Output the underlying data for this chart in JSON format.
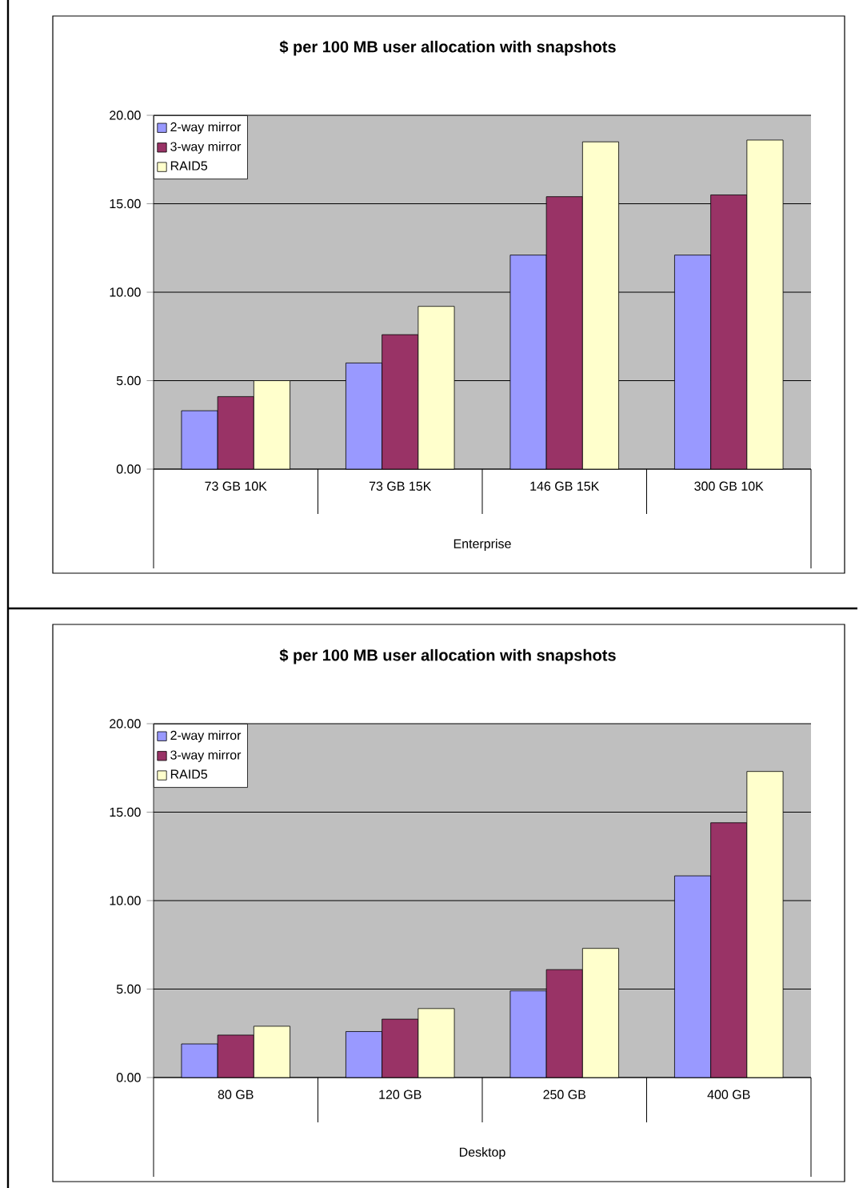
{
  "chart_data": [
    {
      "type": "bar",
      "title": "$ per 100 MB user allocation with snapshots",
      "xlabel": "Enterprise",
      "categories": [
        "73 GB 10K",
        "73 GB 15K",
        "146 GB 15K",
        "300 GB 10K"
      ],
      "series": [
        {
          "name": "2-way mirror",
          "color": "#9999ff",
          "values": [
            3.3,
            6.0,
            12.1,
            12.1
          ]
        },
        {
          "name": "3-way mirror",
          "color": "#993366",
          "values": [
            4.1,
            7.6,
            15.4,
            15.5
          ]
        },
        {
          "name": "RAID5",
          "color": "#ffffcc",
          "values": [
            5.0,
            9.2,
            18.5,
            18.6
          ]
        }
      ],
      "ylim": [
        0,
        20
      ],
      "yticks": [
        {
          "value": 0,
          "label": "0.00"
        },
        {
          "value": 5,
          "label": "5.00"
        },
        {
          "value": 10,
          "label": "10.00"
        },
        {
          "value": 15,
          "label": "15.00"
        },
        {
          "value": 20,
          "label": "20.00"
        }
      ],
      "grid": "y",
      "legend": "top left"
    },
    {
      "type": "bar",
      "title": "$ per 100 MB user allocation with snapshots",
      "xlabel": "Desktop",
      "categories": [
        "80 GB",
        "120 GB",
        "250 GB",
        "400 GB"
      ],
      "series": [
        {
          "name": "2-way mirror",
          "color": "#9999ff",
          "values": [
            1.9,
            2.6,
            4.9,
            11.4
          ]
        },
        {
          "name": "3-way mirror",
          "color": "#993366",
          "values": [
            2.4,
            3.3,
            6.1,
            14.4
          ]
        },
        {
          "name": "RAID5",
          "color": "#ffffcc",
          "values": [
            2.9,
            3.9,
            7.3,
            17.3
          ]
        }
      ],
      "ylim": [
        0,
        20
      ],
      "yticks": [
        {
          "value": 0,
          "label": "0.00"
        },
        {
          "value": 5,
          "label": "5.00"
        },
        {
          "value": 10,
          "label": "10.00"
        },
        {
          "value": 15,
          "label": "15.00"
        },
        {
          "value": 20,
          "label": "20.00"
        }
      ],
      "grid": "y",
      "legend": "top left"
    }
  ]
}
